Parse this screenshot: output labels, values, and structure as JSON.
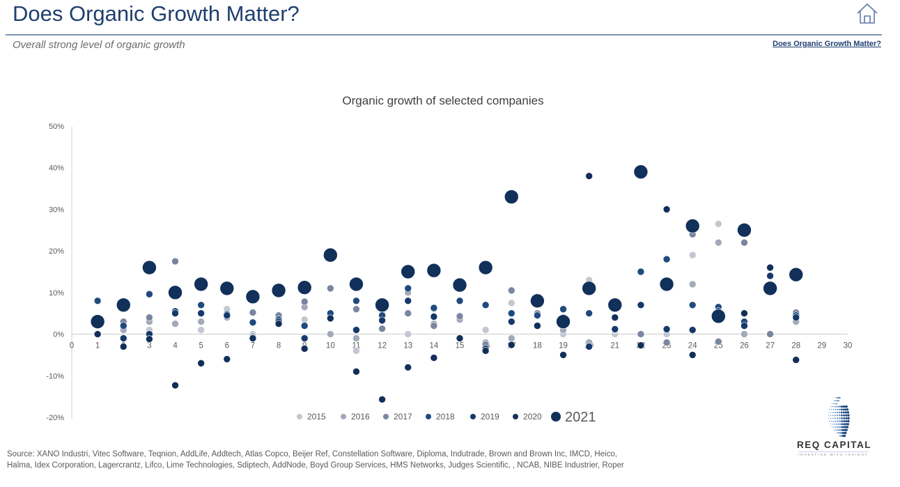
{
  "header": {
    "title": "Does Organic Growth Matter?",
    "subtitle": "Overall strong level of organic growth",
    "nav_link": "Does Organic Growth Matter?",
    "home_icon": "home-icon"
  },
  "footer": {
    "source": "Source: XANO Industri, Vitec Software, Teqnion, AddLife, Addtech, Atlas Copco, Beijer Ref, Constellation Software, Diploma, Indutrade, Brown and Brown Inc, IMCD, Heico, Halma, Idex Corporation, Lagercrantz, Lifco, Lime Technologies, Sdiptech, AddNode, Boyd Group Services, HMS Networks, Judges Scientific, , NCAB, NIBE Industrier, Roper"
  },
  "logo": {
    "name": "REQ CAPITAL",
    "tagline": "INVESTING WITH INSIGHT"
  },
  "chart_data": {
    "type": "scatter",
    "title": "Organic growth of selected companies",
    "xlabel": "",
    "ylabel": "",
    "xlim": [
      0,
      30
    ],
    "ylim": [
      -20,
      50
    ],
    "x_ticks": [
      0,
      1,
      2,
      3,
      4,
      5,
      6,
      7,
      8,
      9,
      10,
      11,
      12,
      13,
      14,
      15,
      16,
      17,
      18,
      19,
      20,
      21,
      22,
      23,
      24,
      25,
      26,
      27,
      28,
      29,
      30
    ],
    "y_ticks": [
      -20,
      -10,
      0,
      10,
      20,
      30,
      40,
      50
    ],
    "y_tick_labels": [
      "-20%",
      "-10%",
      "0%",
      "10%",
      "20%",
      "30%",
      "40%",
      "50%"
    ],
    "grid": false,
    "legend_position": "bottom",
    "series": [
      {
        "name": "2015",
        "color": "#c3c7d1",
        "points": [
          [
            2,
            1
          ],
          [
            3,
            1
          ],
          [
            4,
            5
          ],
          [
            5,
            1
          ],
          [
            6,
            6
          ],
          [
            7,
            0
          ],
          [
            9,
            3.5
          ],
          [
            10,
            0
          ],
          [
            11,
            -4
          ],
          [
            12,
            5
          ],
          [
            13,
            0
          ],
          [
            14,
            6
          ],
          [
            15,
            11
          ],
          [
            16,
            1
          ],
          [
            17,
            7.5
          ],
          [
            19,
            0
          ],
          [
            20,
            13
          ],
          [
            21,
            0
          ],
          [
            23,
            0
          ],
          [
            24,
            19
          ],
          [
            25,
            26.5
          ],
          [
            26,
            0
          ],
          [
            28,
            3
          ]
        ]
      },
      {
        "name": "2016",
        "color": "#a3a9b9",
        "points": [
          [
            2,
            1
          ],
          [
            3,
            3
          ],
          [
            4,
            2.5
          ],
          [
            5,
            3
          ],
          [
            6,
            4
          ],
          [
            7,
            -0.5
          ],
          [
            8,
            4
          ],
          [
            9,
            6.5
          ],
          [
            10,
            0
          ],
          [
            11,
            -1
          ],
          [
            12,
            4.5
          ],
          [
            13,
            10
          ],
          [
            14,
            2.5
          ],
          [
            15,
            3.5
          ],
          [
            16,
            -2
          ],
          [
            17,
            -1
          ],
          [
            19,
            1
          ],
          [
            20,
            -2
          ],
          [
            21,
            1
          ],
          [
            22,
            0
          ],
          [
            23,
            -2
          ],
          [
            24,
            12
          ],
          [
            25,
            22
          ],
          [
            26,
            0
          ],
          [
            28,
            3
          ]
        ]
      },
      {
        "name": "2017",
        "color": "#7a86a0",
        "points": [
          [
            2,
            3
          ],
          [
            3,
            4
          ],
          [
            4,
            17.5
          ],
          [
            6,
            4.5
          ],
          [
            7,
            5.2
          ],
          [
            8,
            4.5
          ],
          [
            9,
            7.8
          ],
          [
            10,
            11
          ],
          [
            11,
            6
          ],
          [
            12,
            1.3
          ],
          [
            13,
            5
          ],
          [
            14,
            2
          ],
          [
            15,
            4.3
          ],
          [
            16,
            -2.5
          ],
          [
            17,
            10.5
          ],
          [
            18,
            5
          ],
          [
            19,
            4
          ],
          [
            21,
            1.2
          ],
          [
            22,
            0
          ],
          [
            23,
            -2
          ],
          [
            24,
            24
          ],
          [
            25,
            -1.8
          ],
          [
            26,
            22
          ],
          [
            27,
            0
          ],
          [
            28,
            5.2
          ]
        ]
      },
      {
        "name": "2018",
        "color": "#1f4a80",
        "points": [
          [
            1,
            8
          ],
          [
            2,
            2
          ],
          [
            3,
            9.6
          ],
          [
            4,
            5.5
          ],
          [
            5,
            7
          ],
          [
            6,
            4.8
          ],
          [
            7,
            2.8
          ],
          [
            8,
            3.5
          ],
          [
            9,
            2
          ],
          [
            10,
            5
          ],
          [
            11,
            8
          ],
          [
            12,
            4.5
          ],
          [
            13,
            11
          ],
          [
            14,
            6.3
          ],
          [
            15,
            8
          ],
          [
            16,
            7
          ],
          [
            17,
            5
          ],
          [
            18,
            4.5
          ],
          [
            19,
            6
          ],
          [
            20,
            5
          ],
          [
            21,
            4
          ],
          [
            22,
            15
          ],
          [
            23,
            18
          ],
          [
            24,
            7
          ],
          [
            25,
            6.5
          ],
          [
            26,
            3
          ],
          [
            27,
            16
          ],
          [
            28,
            4.5
          ]
        ]
      },
      {
        "name": "2019",
        "color": "#16396b",
        "points": [
          [
            1,
            0
          ],
          [
            2,
            -1
          ],
          [
            3,
            0
          ],
          [
            4,
            5
          ],
          [
            5,
            5
          ],
          [
            6,
            4.5
          ],
          [
            7,
            -1
          ],
          [
            8,
            3
          ],
          [
            9,
            -1
          ],
          [
            10,
            3.8
          ],
          [
            11,
            1
          ],
          [
            12,
            3.3
          ],
          [
            13,
            8
          ],
          [
            14,
            4.2
          ],
          [
            15,
            -1
          ],
          [
            16,
            -3.5
          ],
          [
            17,
            3
          ],
          [
            18,
            2
          ],
          [
            19,
            -5
          ],
          [
            20,
            -3
          ],
          [
            21,
            1.2
          ],
          [
            22,
            7
          ],
          [
            23,
            1.2
          ],
          [
            24,
            1
          ],
          [
            25,
            5.5
          ],
          [
            26,
            2
          ],
          [
            27,
            14
          ],
          [
            28,
            4
          ]
        ]
      },
      {
        "name": "2020",
        "color": "#122f5a",
        "points": [
          [
            1,
            0
          ],
          [
            2,
            -3
          ],
          [
            3,
            -1.2
          ],
          [
            4,
            -12.3
          ],
          [
            5,
            -7
          ],
          [
            6,
            -6
          ],
          [
            7,
            -1
          ],
          [
            8,
            2.5
          ],
          [
            9,
            -3.5
          ],
          [
            10,
            3.8
          ],
          [
            11,
            -9
          ],
          [
            12,
            -15.7
          ],
          [
            13,
            -8
          ],
          [
            14,
            -5.7
          ],
          [
            15,
            -1
          ],
          [
            16,
            -4
          ],
          [
            17,
            -2.6
          ],
          [
            18,
            2
          ],
          [
            19,
            -5
          ],
          [
            20,
            38
          ],
          [
            21,
            4
          ],
          [
            22,
            -2.7
          ],
          [
            23,
            30
          ],
          [
            24,
            -5
          ],
          [
            25,
            5
          ],
          [
            26,
            5
          ],
          [
            27,
            16
          ],
          [
            28,
            -6.2
          ]
        ]
      },
      {
        "name": "2021",
        "color": "#11305a",
        "points": [
          [
            1,
            3
          ],
          [
            2,
            7
          ],
          [
            3,
            16
          ],
          [
            4,
            10
          ],
          [
            5,
            12
          ],
          [
            6,
            11
          ],
          [
            7,
            9
          ],
          [
            8,
            10.5
          ],
          [
            9,
            11.2
          ],
          [
            10,
            19
          ],
          [
            11,
            12
          ],
          [
            12,
            7
          ],
          [
            13,
            15
          ],
          [
            14,
            15.3
          ],
          [
            15,
            11.8
          ],
          [
            16,
            16
          ],
          [
            17,
            33
          ],
          [
            18,
            8
          ],
          [
            19,
            3
          ],
          [
            20,
            11
          ],
          [
            21,
            7
          ],
          [
            22,
            39
          ],
          [
            23,
            12
          ],
          [
            24,
            26
          ],
          [
            25,
            4.3
          ],
          [
            26,
            25
          ],
          [
            27,
            11
          ],
          [
            28,
            14.3
          ]
        ]
      }
    ]
  }
}
